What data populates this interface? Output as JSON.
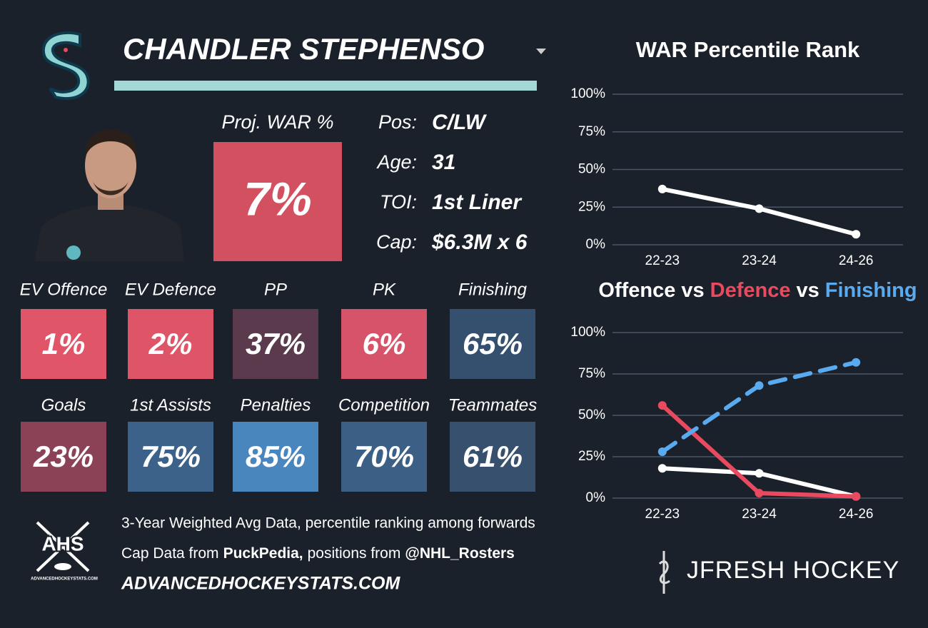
{
  "header": {
    "player": "CHANDLER STEPHENSO"
  },
  "projection": {
    "label": "Proj. WAR %",
    "value": "7%",
    "color": "#d2505f"
  },
  "info": [
    {
      "label": "Pos:",
      "value": "C/LW"
    },
    {
      "label": "Age:",
      "value": "31"
    },
    {
      "label": "TOI:",
      "value": "1st Liner"
    },
    {
      "label": "Cap:",
      "value": "$6.3M x 6"
    }
  ],
  "tiles": [
    [
      {
        "label": "EV Offence",
        "value": "1%",
        "color": "#e05567"
      },
      {
        "label": "EV Defence",
        "value": "2%",
        "color": "#de5567"
      },
      {
        "label": "PP",
        "value": "37%",
        "color": "#5a3a4c"
      },
      {
        "label": "PK",
        "value": "6%",
        "color": "#d6536a"
      },
      {
        "label": "Finishing",
        "value": "65%",
        "color": "#35506e"
      }
    ],
    [
      {
        "label": "Goals",
        "value": "23%",
        "color": "#8b4257"
      },
      {
        "label": "1st Assists",
        "value": "75%",
        "color": "#3d6289"
      },
      {
        "label": "Penalties",
        "value": "85%",
        "color": "#4a86be"
      },
      {
        "label": "Competition",
        "value": "70%",
        "color": "#3c5f85"
      },
      {
        "label": "Teammates",
        "value": "61%",
        "color": "#36506e"
      }
    ]
  ],
  "footer": {
    "line1": "3-Year Weighted Avg Data, percentile ranking among forwards",
    "line2": [
      "Cap Data from",
      "PuckPedia,",
      "positions from",
      "@NHL_Rosters"
    ],
    "line3": "ADVANCEDHOCKEYSTATS.COM",
    "ahs": "AHS",
    "ahs_site": "ADVANCEDHOCKEYSTATS.COM",
    "brand": "JFRESH HOCKEY"
  },
  "chart_data": [
    {
      "type": "line",
      "title": "WAR Percentile Rank",
      "categories": [
        "22-23",
        "23-24",
        "24-26"
      ],
      "values": [
        37,
        24,
        7
      ],
      "color": "#ffffff",
      "ylim": [
        0,
        100
      ],
      "yticks": [
        {
          "value": 0,
          "label": "0%"
        },
        {
          "value": 25,
          "label": "25%"
        },
        {
          "value": 50,
          "label": "50%"
        },
        {
          "value": 75,
          "label": "75%"
        },
        {
          "value": 100,
          "label": "100%"
        }
      ],
      "grid": true
    },
    {
      "type": "line",
      "title_joiner": "vs",
      "categories": [
        "22-23",
        "23-24",
        "24-26"
      ],
      "series": [
        {
          "name": "Offence",
          "color": "#ffffff",
          "values": [
            18,
            15,
            1
          ]
        },
        {
          "name": "Defence",
          "color": "#e94a5f",
          "values": [
            56,
            3,
            1
          ]
        },
        {
          "name": "Finishing",
          "color": "#5aaaf0",
          "values": [
            28,
            68,
            82
          ],
          "dashed": true
        }
      ],
      "ylim": [
        0,
        100
      ],
      "yticks": [
        {
          "value": 0,
          "label": "0%"
        },
        {
          "value": 25,
          "label": "25%"
        },
        {
          "value": 50,
          "label": "50%"
        },
        {
          "value": 75,
          "label": "75%"
        },
        {
          "value": 100,
          "label": "100%"
        }
      ],
      "grid": true
    }
  ]
}
